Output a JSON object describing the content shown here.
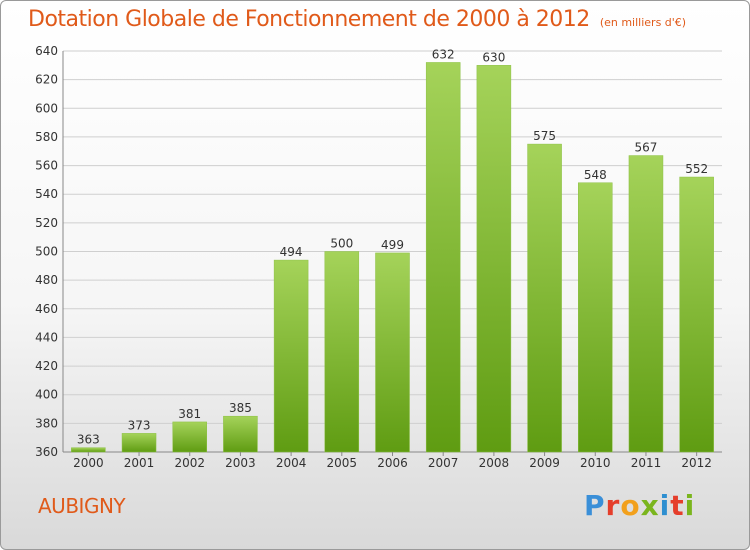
{
  "title": "Dotation Globale de Fonctionnement de 2000 à 2012",
  "units_note": "(en milliers d'€)",
  "commune": "AUBIGNY",
  "logo": {
    "letters": [
      "P",
      "r",
      "o",
      "x",
      "i",
      "t",
      "i"
    ],
    "colors": [
      "#3a8fd8",
      "#e53e2b",
      "#f2a01c",
      "#7ab51d",
      "#2e8fd0",
      "#e53e2b",
      "#7ab51d"
    ]
  },
  "colors": {
    "bar_top": "#a5d35a",
    "bar_bottom": "#5f9c12",
    "accent": "#e05a1a",
    "grid": "#cfcfcf"
  },
  "chart_data": {
    "type": "bar",
    "title": "Dotation Globale de Fonctionnement de 2000 à 2012",
    "xlabel": "",
    "ylabel": "",
    "ylim": [
      360,
      640
    ],
    "yticks": [
      360,
      380,
      400,
      420,
      440,
      460,
      480,
      500,
      520,
      540,
      560,
      580,
      600,
      620,
      640
    ],
    "grid": true,
    "categories": [
      "2000",
      "2001",
      "2002",
      "2003",
      "2004",
      "2005",
      "2006",
      "2007",
      "2008",
      "2009",
      "2010",
      "2011",
      "2012"
    ],
    "values": [
      363,
      373,
      381,
      385,
      494,
      500,
      499,
      632,
      630,
      575,
      548,
      567,
      552
    ]
  }
}
